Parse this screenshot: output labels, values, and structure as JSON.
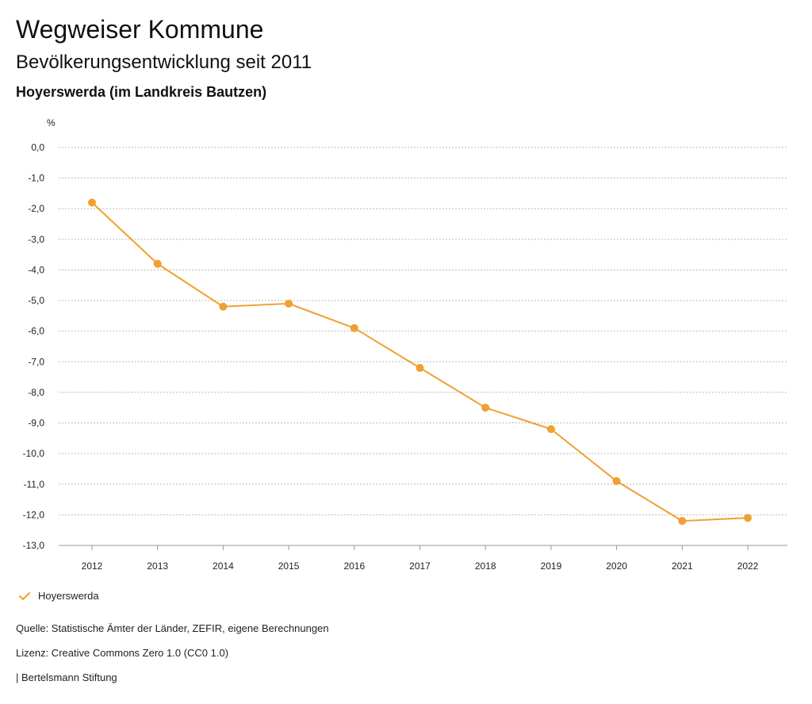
{
  "header": {
    "title": "Wegweiser Kommune",
    "subtitle": "Bevölkerungsentwicklung seit 2011",
    "region": "Hoyerswerda (im Landkreis Bautzen)"
  },
  "footer": {
    "source": "Quelle: Statistische Ämter der Länder, ZEFIR, eigene Berechnungen",
    "license": "Lizenz: Creative Commons Zero 1.0 (CC0 1.0)",
    "brand": "| Bertelsmann Stiftung"
  },
  "legend": {
    "label": "Hoyerswerda",
    "icon": "check-icon"
  },
  "colors": {
    "series": "#f0a030",
    "grid": "#bbbbbb",
    "axis": "#999999"
  },
  "chart_data": {
    "type": "line",
    "title": "Bevölkerungsentwicklung seit 2011",
    "ylabel": "%",
    "xlabel": "",
    "categories": [
      "2012",
      "2013",
      "2014",
      "2015",
      "2016",
      "2017",
      "2018",
      "2019",
      "2020",
      "2021",
      "2022"
    ],
    "series": [
      {
        "name": "Hoyerswerda",
        "values": [
          -1.8,
          -3.8,
          -5.2,
          -5.1,
          -5.9,
          -7.2,
          -8.5,
          -9.2,
          -10.9,
          -12.2,
          -12.1
        ]
      }
    ],
    "ylim": [
      -13,
      0
    ],
    "yticks": [
      "0,0",
      "-1,0",
      "-2,0",
      "-3,0",
      "-4,0",
      "-5,0",
      "-6,0",
      "-7,0",
      "-8,0",
      "-9,0",
      "-10,0",
      "-11,0",
      "-12,0",
      "-13,0"
    ],
    "ytick_values": [
      0,
      -1,
      -2,
      -3,
      -4,
      -5,
      -6,
      -7,
      -8,
      -9,
      -10,
      -11,
      -12,
      -13
    ],
    "grid": true,
    "legend_position": "bottom-left"
  }
}
